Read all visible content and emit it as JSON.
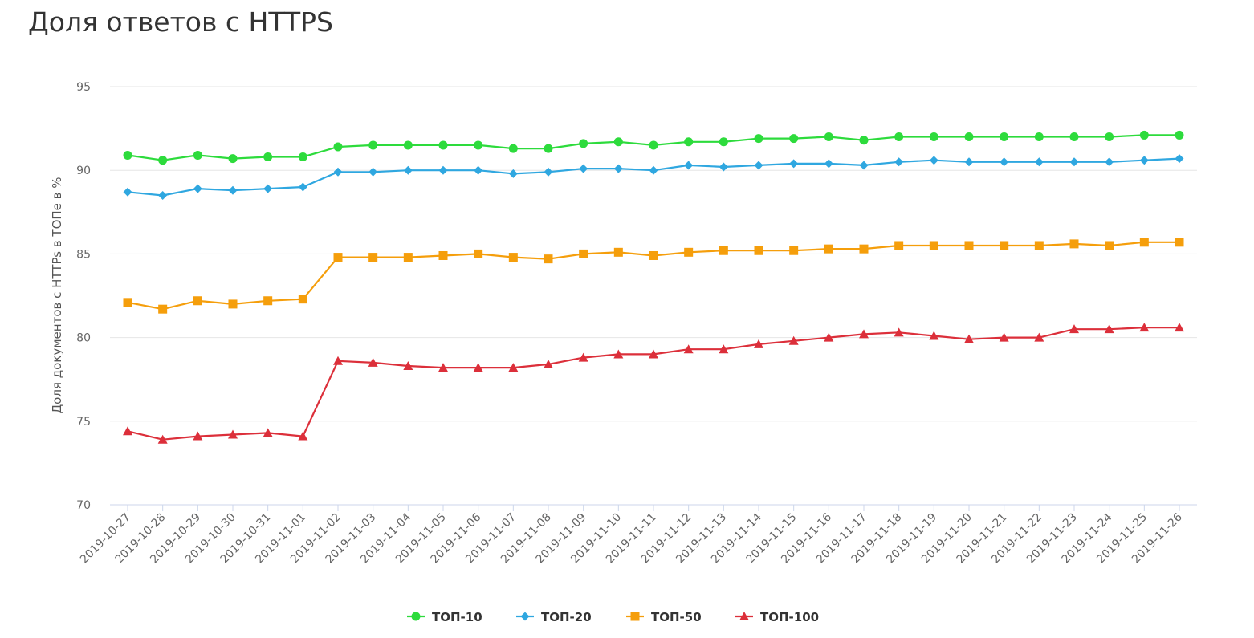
{
  "title": "Доля ответов с HTTPS",
  "chart_data": {
    "type": "line",
    "title": "Доля ответов с HTTPS",
    "xlabel": "",
    "ylabel": "Доля документов с HTTPs в ТОПе в %",
    "ylim": [
      70,
      95
    ],
    "yticks": [
      70,
      75,
      80,
      85,
      90,
      95
    ],
    "grid": true,
    "legend": "bottom-center",
    "categories": [
      "2019-10-27",
      "2019-10-28",
      "2019-10-29",
      "2019-10-30",
      "2019-10-31",
      "2019-11-01",
      "2019-11-02",
      "2019-11-03",
      "2019-11-04",
      "2019-11-05",
      "2019-11-06",
      "2019-11-07",
      "2019-11-08",
      "2019-11-09",
      "2019-11-10",
      "2019-11-11",
      "2019-11-12",
      "2019-11-13",
      "2019-11-14",
      "2019-11-15",
      "2019-11-16",
      "2019-11-17",
      "2019-11-18",
      "2019-11-19",
      "2019-11-20",
      "2019-11-21",
      "2019-11-22",
      "2019-11-23",
      "2019-11-24",
      "2019-11-25",
      "2019-11-26"
    ],
    "series": [
      {
        "name": "ТОП-10",
        "color": "#2ddb3c",
        "marker": "circle",
        "values": [
          90.9,
          90.6,
          90.9,
          90.7,
          90.8,
          90.8,
          91.4,
          91.5,
          91.5,
          91.5,
          91.5,
          91.3,
          91.3,
          91.6,
          91.7,
          91.5,
          91.7,
          91.7,
          91.9,
          91.9,
          92.0,
          91.8,
          92.0,
          92.0,
          92.0,
          92.0,
          92.0,
          92.0,
          92.0,
          92.1,
          92.1
        ]
      },
      {
        "name": "ТОП-20",
        "color": "#2fa7e0",
        "marker": "diamond",
        "values": [
          88.7,
          88.5,
          88.9,
          88.8,
          88.9,
          89.0,
          89.9,
          89.9,
          90.0,
          90.0,
          90.0,
          89.8,
          89.9,
          90.1,
          90.1,
          90.0,
          90.3,
          90.2,
          90.3,
          90.4,
          90.4,
          90.3,
          90.5,
          90.6,
          90.5,
          90.5,
          90.5,
          90.5,
          90.5,
          90.6,
          90.7
        ]
      },
      {
        "name": "ТОП-50",
        "color": "#f59e0b",
        "marker": "square",
        "values": [
          82.1,
          81.7,
          82.2,
          82.0,
          82.2,
          82.3,
          84.8,
          84.8,
          84.8,
          84.9,
          85.0,
          84.8,
          84.7,
          85.0,
          85.1,
          84.9,
          85.1,
          85.2,
          85.2,
          85.2,
          85.3,
          85.3,
          85.5,
          85.5,
          85.5,
          85.5,
          85.5,
          85.6,
          85.5,
          85.7,
          85.7
        ]
      },
      {
        "name": "ТОП-100",
        "color": "#dc2f3a",
        "marker": "triangle",
        "values": [
          74.4,
          73.9,
          74.1,
          74.2,
          74.3,
          74.1,
          78.6,
          78.5,
          78.3,
          78.2,
          78.2,
          78.2,
          78.4,
          78.8,
          79.0,
          79.0,
          79.3,
          79.3,
          79.6,
          79.8,
          80.0,
          80.2,
          80.3,
          80.1,
          79.9,
          80.0,
          80.0,
          80.5,
          80.5,
          80.6,
          80.6
        ]
      }
    ]
  }
}
